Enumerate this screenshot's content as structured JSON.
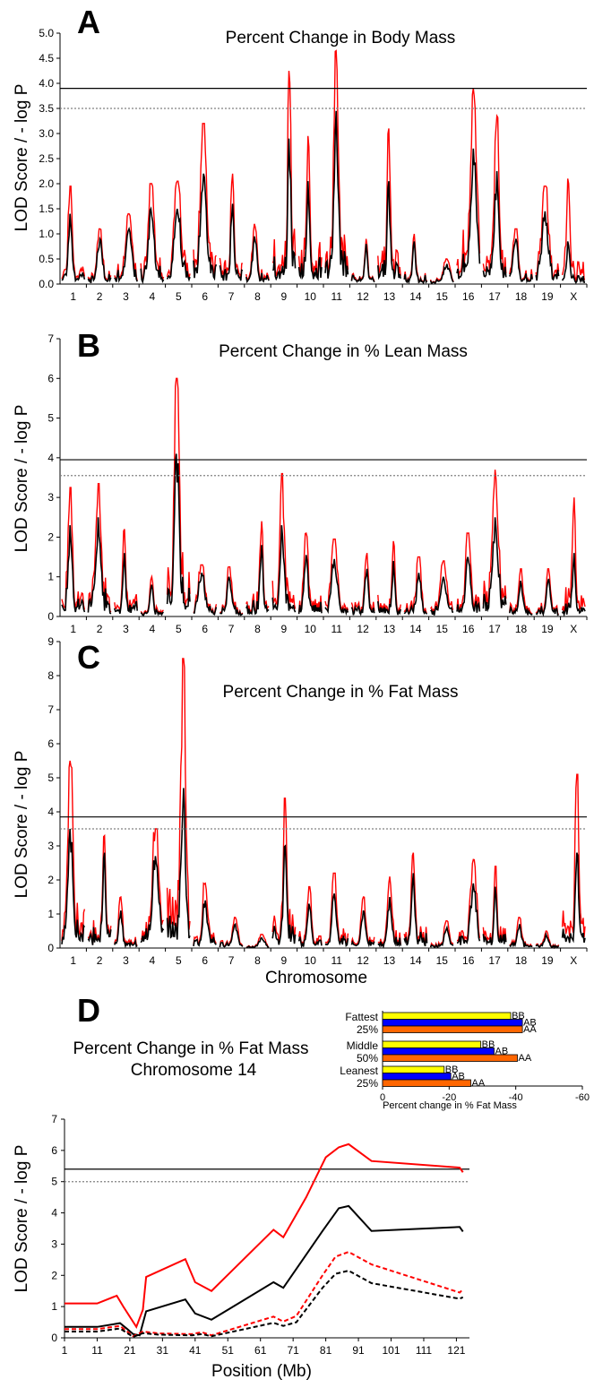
{
  "colors": {
    "lod": "#ff0000",
    "logp": "#000000",
    "significant": "#000000",
    "suggestive": "#808080",
    "bb": "#ffff00",
    "ab": "#0000ff",
    "aa": "#ff6600"
  },
  "chart_data": [
    {
      "panel": "A",
      "type": "line",
      "title": "Percent Change in Body Mass",
      "ylabel": "LOD Score / - log P",
      "xlabel": "",
      "ylim": [
        0,
        5.0
      ],
      "yticks": [
        "0.0",
        "0.5",
        "1.0",
        "1.5",
        "2.0",
        "2.5",
        "3.0",
        "3.5",
        "4.0",
        "4.5",
        "5.0"
      ],
      "chromosomes": [
        "1",
        "2",
        "3",
        "4",
        "5",
        "6",
        "7",
        "8",
        "9",
        "10",
        "11",
        "12",
        "13",
        "14",
        "15",
        "16",
        "17",
        "18",
        "19",
        "X"
      ],
      "threshold_significant": 3.9,
      "threshold_suggestive": 3.5,
      "chrom_peaks_lod": [
        1.95,
        1.1,
        1.4,
        2.0,
        2.05,
        3.2,
        2.2,
        1.2,
        4.25,
        2.95,
        4.65,
        0.9,
        3.1,
        1.0,
        0.5,
        3.9,
        3.35,
        1.1,
        1.95,
        2.1
      ],
      "chrom_peaks_logp": [
        1.4,
        0.9,
        1.1,
        1.5,
        1.5,
        2.2,
        1.6,
        0.95,
        2.9,
        2.05,
        3.45,
        0.8,
        2.05,
        0.85,
        0.4,
        2.7,
        2.25,
        0.9,
        1.45,
        0.85
      ]
    },
    {
      "panel": "B",
      "type": "line",
      "title": "Percent Change in % Lean Mass",
      "ylabel": "LOD Score / - log P",
      "xlabel": "",
      "ylim": [
        0,
        7
      ],
      "yticks": [
        "0",
        "1",
        "2",
        "3",
        "4",
        "5",
        "6",
        "7"
      ],
      "chromosomes": [
        "1",
        "2",
        "3",
        "4",
        "5",
        "6",
        "7",
        "8",
        "9",
        "10",
        "11",
        "12",
        "13",
        "14",
        "15",
        "16",
        "17",
        "18",
        "19",
        "X"
      ],
      "threshold_significant": 3.95,
      "threshold_suggestive": 3.55,
      "chrom_peaks_lod": [
        3.25,
        3.35,
        2.2,
        1.0,
        6.0,
        1.3,
        1.25,
        2.4,
        3.6,
        2.1,
        1.95,
        1.6,
        1.9,
        1.5,
        1.4,
        2.1,
        3.7,
        1.2,
        1.2,
        3.0
      ],
      "chrom_peaks_logp": [
        2.3,
        2.5,
        1.6,
        0.8,
        4.1,
        1.1,
        1.0,
        1.8,
        2.3,
        1.55,
        1.45,
        1.2,
        1.4,
        1.1,
        1.0,
        1.5,
        2.5,
        0.9,
        0.95,
        1.6
      ]
    },
    {
      "panel": "C",
      "type": "line",
      "title": "Percent Change in % Fat Mass",
      "ylabel": "LOD Score / - log P",
      "xlabel": "Chromosome",
      "ylim": [
        0,
        9
      ],
      "yticks": [
        "0",
        "1",
        "2",
        "3",
        "4",
        "5",
        "6",
        "7",
        "8",
        "9"
      ],
      "chromosomes": [
        "1",
        "2",
        "3",
        "4",
        "5",
        "6",
        "7",
        "8",
        "9",
        "10",
        "11",
        "12",
        "13",
        "14",
        "15",
        "16",
        "17",
        "18",
        "19",
        "X"
      ],
      "threshold_significant": 3.85,
      "threshold_suggestive": 3.5,
      "chrom_peaks_lod": [
        5.5,
        3.3,
        1.5,
        3.5,
        8.5,
        1.9,
        0.9,
        0.4,
        4.4,
        1.8,
        2.2,
        1.5,
        2.1,
        2.8,
        0.8,
        2.6,
        2.4,
        0.9,
        0.5,
        5.1
      ],
      "chrom_peaks_logp": [
        3.5,
        2.8,
        1.1,
        2.7,
        4.7,
        1.4,
        0.7,
        0.3,
        3.0,
        1.3,
        1.6,
        1.1,
        1.5,
        2.2,
        0.6,
        1.9,
        1.8,
        0.7,
        0.4,
        2.8
      ]
    },
    {
      "panel": "D",
      "type": "line",
      "title": "Percent Change in % Fat Mass",
      "subtitle": "Chromosome 14",
      "ylabel": "LOD Score / - log P",
      "xlabel": "Position (Mb)",
      "xlim": [
        1,
        125
      ],
      "ylim": [
        0,
        7
      ],
      "xticks": [
        "1",
        "11",
        "21",
        "31",
        "41",
        "51",
        "61",
        "71",
        "81",
        "91",
        "101",
        "111",
        "121"
      ],
      "yticks": [
        "0",
        "1",
        "2",
        "3",
        "4",
        "5",
        "6",
        "7"
      ],
      "threshold_significant": 5.4,
      "threshold_suggestive": 5.0,
      "series": [
        {
          "color": "#ff0000",
          "dash": false,
          "x": [
            1,
            11,
            17,
            19,
            23,
            25,
            26,
            38,
            41,
            46,
            65,
            68,
            75,
            81,
            85,
            88,
            95,
            122,
            123
          ],
          "y": [
            1.1,
            1.1,
            1.35,
            1.0,
            0.35,
            0.9,
            1.95,
            2.52,
            1.78,
            1.5,
            3.46,
            3.22,
            4.5,
            5.78,
            6.1,
            6.2,
            5.66,
            5.45,
            5.3
          ]
        },
        {
          "color": "#000000",
          "dash": false,
          "x": [
            1,
            11,
            18,
            20,
            22,
            24,
            26,
            38,
            41,
            46,
            65,
            68,
            80,
            85,
            88,
            95,
            122,
            123
          ],
          "y": [
            0.35,
            0.35,
            0.47,
            0.3,
            0.12,
            0.08,
            0.85,
            1.23,
            0.78,
            0.58,
            1.78,
            1.6,
            3.42,
            4.15,
            4.22,
            3.42,
            3.55,
            3.4
          ]
        },
        {
          "color": "#ff0000",
          "dash": true,
          "x": [
            1,
            11,
            18,
            22,
            25,
            30,
            40,
            43,
            46,
            65,
            68,
            72,
            80,
            84,
            88,
            95,
            122,
            123
          ],
          "y": [
            0.28,
            0.28,
            0.38,
            0.05,
            0.2,
            0.14,
            0.12,
            0.18,
            0.08,
            0.68,
            0.52,
            0.7,
            2.0,
            2.6,
            2.75,
            2.35,
            1.45,
            1.55
          ]
        },
        {
          "color": "#000000",
          "dash": true,
          "x": [
            1,
            11,
            18,
            22,
            25,
            30,
            40,
            43,
            46,
            65,
            68,
            72,
            80,
            84,
            88,
            95,
            122,
            123
          ],
          "y": [
            0.2,
            0.2,
            0.3,
            0.03,
            0.15,
            0.1,
            0.08,
            0.12,
            0.05,
            0.48,
            0.38,
            0.5,
            1.6,
            2.05,
            2.15,
            1.75,
            1.25,
            1.3
          ]
        }
      ]
    },
    {
      "panel": "D-inset",
      "type": "bar",
      "xlabel": "Percent change in % Fat Mass",
      "xlim": [
        0,
        -60
      ],
      "xticks": [
        "0",
        "-20",
        "-40",
        "-60"
      ],
      "groups": [
        {
          "label_lines": [
            "Fattest",
            "25%"
          ],
          "labels": [
            "BB",
            "AB",
            "AA"
          ],
          "values": [
            -38.5,
            -42,
            -42
          ]
        },
        {
          "label_lines": [
            "Middle",
            "50%"
          ],
          "labels": [
            "BB",
            "AB",
            "AA"
          ],
          "values": [
            -29.5,
            -33.5,
            -40.5
          ]
        },
        {
          "label_lines": [
            "Leanest",
            "25%"
          ],
          "labels": [
            "BB",
            "AB",
            "AA"
          ],
          "values": [
            -18.5,
            -20.5,
            -26.5
          ]
        }
      ]
    }
  ]
}
